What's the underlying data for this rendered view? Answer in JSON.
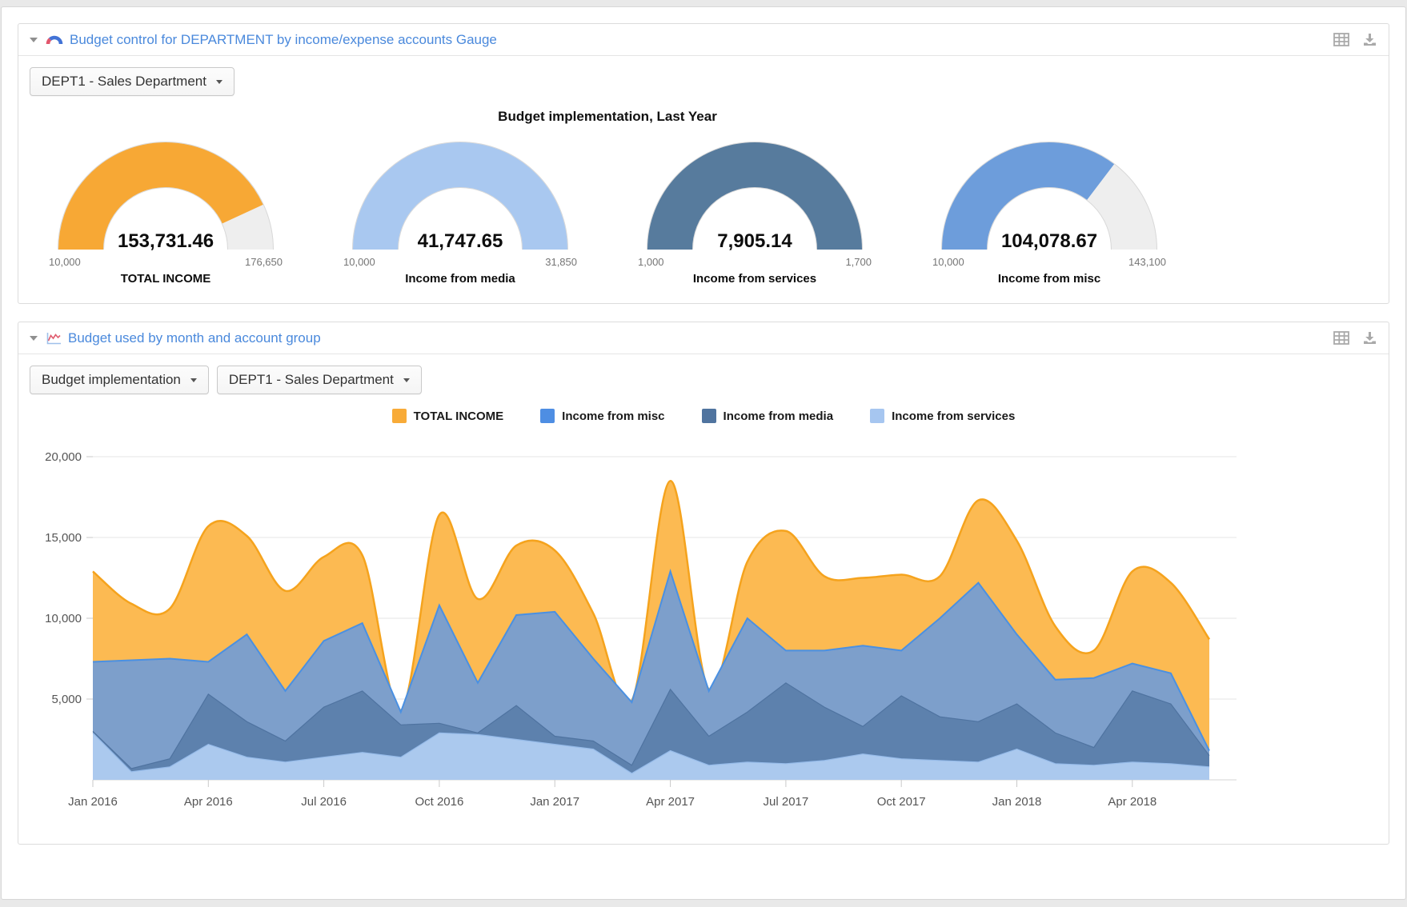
{
  "window": {
    "background": "#e9e9e9",
    "card_background": "#ffffff"
  },
  "icons": {
    "panel_collapse": "caret-down-icon",
    "gauge_panel_header": "gauge-icon",
    "area_panel_header": "line-chart-icon",
    "toolbar": [
      "table-icon",
      "download-icon"
    ],
    "dropdown": "caret-down-icon"
  },
  "panels": [
    {
      "id": "gauge-panel",
      "title": "Budget control for DEPARTMENT by income/expense accounts Gauge",
      "filters": [
        {
          "value": "DEPT1 - Sales Department"
        }
      ],
      "chart_title": "Budget implementation, Last Year"
    },
    {
      "id": "area-panel",
      "title": "Budget used by month and account group",
      "filters": [
        {
          "value": "Budget implementation"
        },
        {
          "value": "DEPT1 - Sales Department"
        }
      ]
    }
  ],
  "chart_data": [
    {
      "type": "gauge",
      "title": "Budget implementation, Last Year",
      "track_color": "#eeeeee",
      "gauges": [
        {
          "label": "TOTAL INCOME",
          "value": 153731.46,
          "value_label": "153,731.46",
          "min": 10000,
          "max": 176650,
          "min_label": "10,000",
          "max_label": "176,650",
          "color": "#f7a835"
        },
        {
          "label": "Income from media",
          "value": 41747.65,
          "value_label": "41,747.65",
          "min": 10000,
          "max": 31850,
          "min_label": "10,000",
          "max_label": "31,850",
          "color": "#a9c8f0"
        },
        {
          "label": "Income from services",
          "value": 7905.14,
          "value_label": "7,905.14",
          "min": 1000,
          "max": 1700,
          "min_label": "1,000",
          "max_label": "1,700",
          "color": "#577b9d"
        },
        {
          "label": "Income from misc",
          "value": 104078.67,
          "value_label": "104,078.67",
          "min": 10000,
          "max": 143100,
          "min_label": "10,000",
          "max_label": "143,100",
          "color": "#6d9ddb"
        }
      ]
    },
    {
      "type": "area",
      "title": "",
      "grid": true,
      "legend_position": "top",
      "ylim": [
        0,
        20000
      ],
      "yticks": [
        5000,
        10000,
        15000,
        20000
      ],
      "ytick_labels": [
        "5,000",
        "10,000",
        "15,000",
        "20,000"
      ],
      "xtick_every": 3,
      "x": [
        "Jan 2016",
        "Feb 2016",
        "Mar 2016",
        "Apr 2016",
        "May 2016",
        "Jun 2016",
        "Jul 2016",
        "Aug 2016",
        "Sep 2016",
        "Oct 2016",
        "Nov 2016",
        "Dec 2016",
        "Jan 2017",
        "Feb 2017",
        "Mar 2017",
        "Apr 2017",
        "May 2017",
        "Jun 2017",
        "Jul 2017",
        "Aug 2017",
        "Sep 2017",
        "Oct 2017",
        "Nov 2017",
        "Dec 2017",
        "Jan 2018",
        "Feb 2018",
        "Mar 2018",
        "Apr 2018",
        "May 2018",
        "Jun 2018"
      ],
      "series": [
        {
          "name": "TOTAL INCOME",
          "stacked": false,
          "smooth": true,
          "fill": "#fcba52",
          "stroke": "#f5a31d",
          "legend_color": "#f8ab38",
          "values": [
            12900,
            10900,
            10600,
            15700,
            15100,
            11700,
            13800,
            13900,
            4300,
            16400,
            11200,
            14500,
            14200,
            10300,
            4900,
            18500,
            5600,
            13500,
            15400,
            12600,
            12500,
            12700,
            12600,
            17300,
            14800,
            9500,
            8000,
            12900,
            12200,
            8700
          ]
        },
        {
          "name": "Income from misc",
          "stacked": true,
          "smooth": false,
          "fill": "#7d9fcb",
          "stroke": "#4a90e2",
          "legend_color": "#4e8ee3",
          "values": [
            4300,
            6700,
            6200,
            2000,
            5400,
            3100,
            4100,
            4200,
            800,
            7300,
            3100,
            5600,
            7700,
            5100,
            3900,
            7300,
            2800,
            5800,
            2000,
            3500,
            5000,
            2800,
            6100,
            8600,
            4300,
            3300,
            4300,
            1700,
            1900,
            300
          ]
        },
        {
          "name": "Income from media",
          "stacked": true,
          "smooth": false,
          "fill": "#5d81ad",
          "stroke": "#4f73a0",
          "legend_color": "#50749f",
          "values": [
            100,
            200,
            500,
            3100,
            2200,
            1300,
            3100,
            3800,
            2000,
            600,
            100,
            2100,
            500,
            500,
            500,
            3800,
            1800,
            3100,
            5000,
            3300,
            1700,
            3900,
            2700,
            2500,
            2800,
            1900,
            1100,
            4400,
            3700,
            700
          ]
        },
        {
          "name": "Income from services",
          "stacked": true,
          "smooth": false,
          "fill": "#abc9ee",
          "stroke": "#96bbe9",
          "legend_color": "#a6c6f0",
          "values": [
            2900,
            500,
            800,
            2200,
            1400,
            1100,
            1400,
            1700,
            1400,
            2900,
            2800,
            2500,
            2200,
            1900,
            400,
            1800,
            900,
            1100,
            1000,
            1200,
            1600,
            1300,
            1200,
            1100,
            1900,
            1000,
            900,
            1100,
            1000,
            800
          ]
        }
      ]
    }
  ]
}
